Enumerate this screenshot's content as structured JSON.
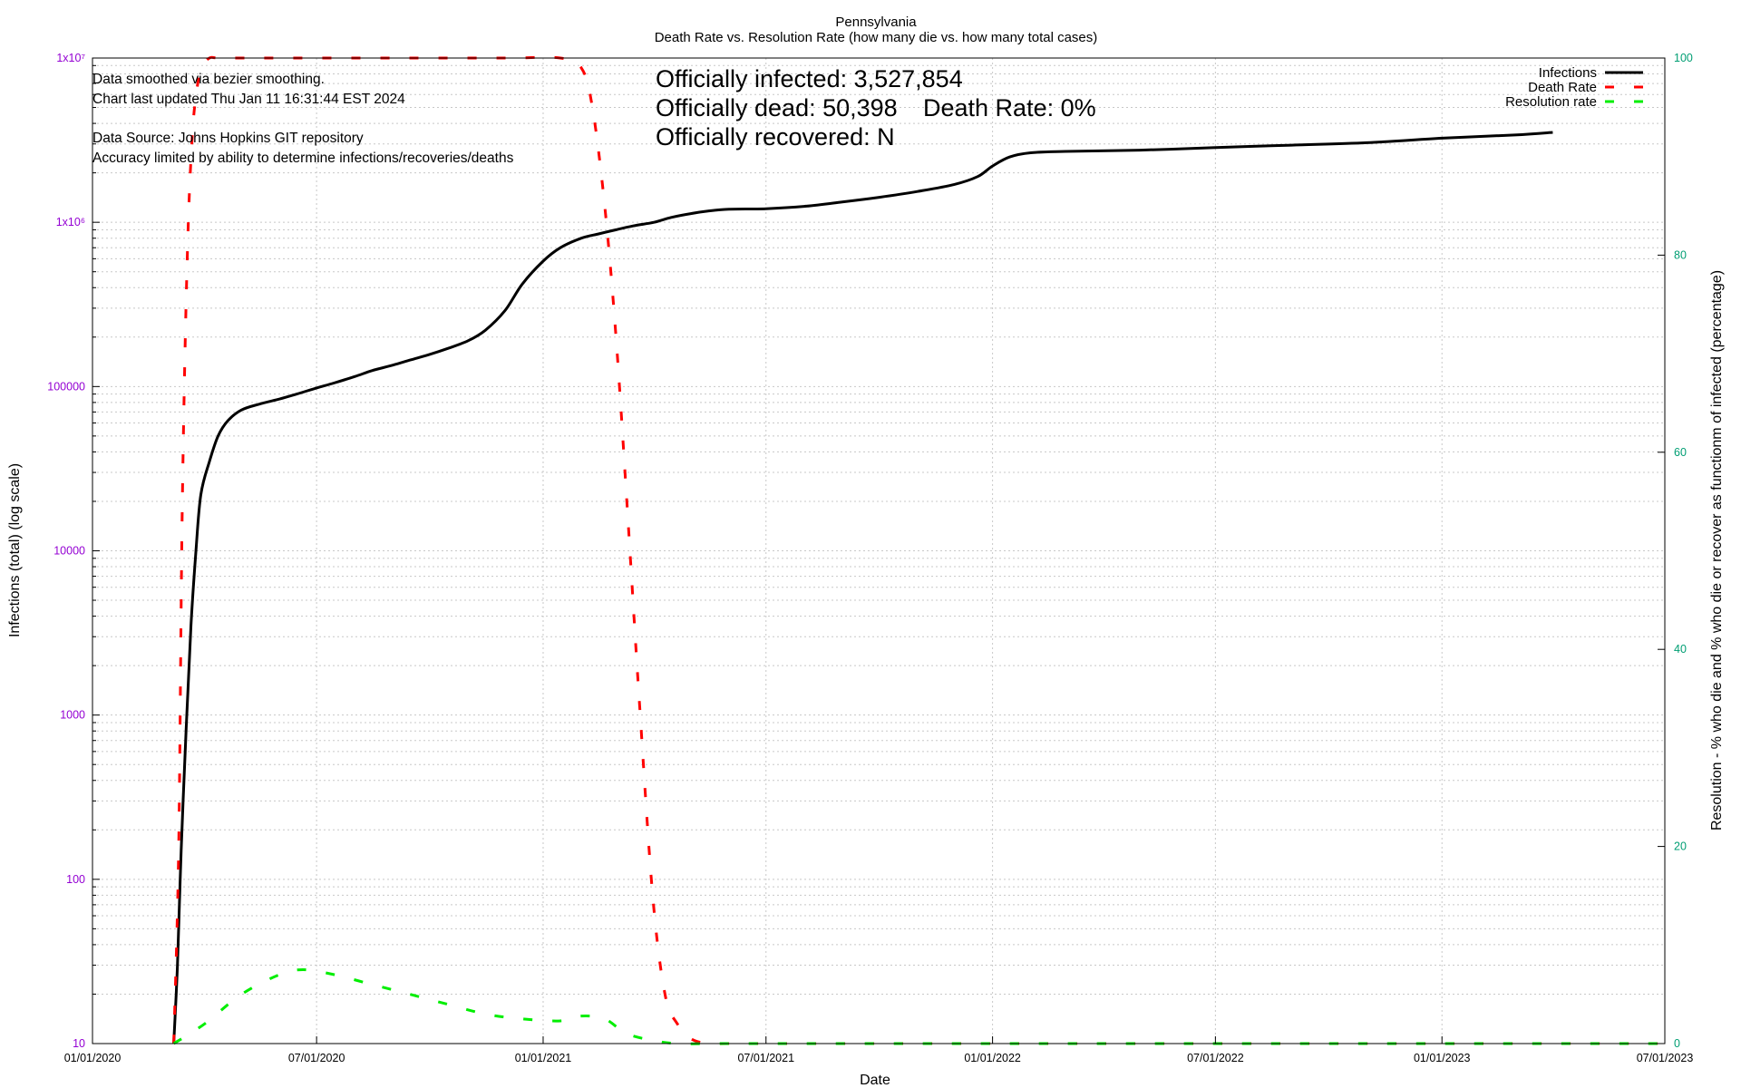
{
  "colors": {
    "infections": "#000000",
    "death_rate": "#ff0000",
    "resolution_rate": "#00ee00",
    "left_axis_ticks": "#9400d3",
    "right_axis_ticks": "#009e73",
    "grid": "#c8c8c8"
  },
  "notes": {
    "smoothing": "Data smoothed via bezier smoothing.",
    "updated": "Chart last updated Thu Jan 11 16:31:44 EST 2024",
    "source": "Data Source: Johns Hopkins GIT repository",
    "accuracy": "Accuracy limited by ability to determine infections/recoveries/deaths"
  },
  "stats": {
    "infected": "Officially infected:  3,527,854",
    "dead": "Officially dead:  50,398",
    "death_rate": "Death Rate: 0%",
    "recovered": "Officially recovered:  N"
  },
  "chart_data": {
    "type": "line",
    "title": "Pennsylvania",
    "subtitle": "Death Rate vs. Resolution Rate (how many die vs. how many total cases)",
    "xlabel": "Date",
    "ylabel": "Infections (total) (log scale)",
    "y2label": "Resolution - % who die and % who die or recover as functionm of infected (percentage)",
    "x_ticks": [
      "01/01/2020",
      "07/01/2020",
      "01/01/2021",
      "07/01/2021",
      "01/01/2022",
      "07/01/2022",
      "01/01/2023",
      "07/01/2023"
    ],
    "xlim": [
      "2020-01-01",
      "2023-07-01"
    ],
    "y_scale": "log",
    "ylim": [
      10,
      10000000
    ],
    "y_ticks": [
      "10",
      "100",
      "1000",
      "10000",
      "100000",
      "1x10⁶",
      "1x10⁷"
    ],
    "y2lim": [
      0,
      100
    ],
    "y2_ticks": [
      "0",
      "20",
      "40",
      "60",
      "80",
      "100"
    ],
    "grid": true,
    "legend_position": "top-right",
    "series": [
      {
        "name": "Infections",
        "axis": "y",
        "style": "solid",
        "x": [
          "2020-03-07",
          "2020-03-10",
          "2020-03-13",
          "2020-03-17",
          "2020-03-21",
          "2020-03-25",
          "2020-03-29",
          "2020-04-05",
          "2020-04-12",
          "2020-04-20",
          "2020-05-01",
          "2020-05-15",
          "2020-06-01",
          "2020-06-15",
          "2020-07-01",
          "2020-07-15",
          "2020-08-01",
          "2020-08-15",
          "2020-09-01",
          "2020-09-15",
          "2020-10-01",
          "2020-10-15",
          "2020-11-01",
          "2020-11-15",
          "2020-12-01",
          "2020-12-15",
          "2021-01-01",
          "2021-01-15",
          "2021-02-01",
          "2021-02-15",
          "2021-03-01",
          "2021-03-15",
          "2021-04-01",
          "2021-04-15",
          "2021-05-01",
          "2021-05-15",
          "2021-06-01",
          "2021-07-01",
          "2021-08-01",
          "2021-09-01",
          "2021-10-01",
          "2021-11-01",
          "2021-12-01",
          "2021-12-20",
          "2022-01-01",
          "2022-01-15",
          "2022-02-01",
          "2022-03-01",
          "2022-05-01",
          "2022-07-01",
          "2022-09-01",
          "2022-11-01",
          "2023-01-01",
          "2023-03-01",
          "2023-04-01"
        ],
        "values": [
          10,
          30,
          150,
          800,
          3500,
          10000,
          22000,
          35000,
          50000,
          62000,
          72000,
          78000,
          84000,
          90000,
          98000,
          105000,
          115000,
          125000,
          135000,
          145000,
          157000,
          170000,
          190000,
          220000,
          290000,
          420000,
          580000,
          700000,
          800000,
          850000,
          900000,
          950000,
          1000000,
          1070000,
          1130000,
          1170000,
          1200000,
          1210000,
          1250000,
          1330000,
          1420000,
          1540000,
          1700000,
          1900000,
          2200000,
          2500000,
          2650000,
          2700000,
          2750000,
          2850000,
          2950000,
          3050000,
          3250000,
          3400000,
          3527854
        ]
      },
      {
        "name": "Death Rate",
        "axis": "y2",
        "style": "dashed",
        "x": [
          "2020-03-07",
          "2020-03-11",
          "2020-03-14",
          "2020-03-18",
          "2020-03-22",
          "2020-03-26",
          "2020-03-30",
          "2020-04-05",
          "2020-04-15",
          "2020-06-01",
          "2020-09-01",
          "2020-12-01",
          "2021-01-15",
          "2021-02-01",
          "2021-02-10",
          "2021-02-20",
          "2021-03-01",
          "2021-03-10",
          "2021-03-20",
          "2021-03-31",
          "2021-04-10",
          "2021-04-20",
          "2021-05-01",
          "2021-05-15",
          "2021-06-01",
          "2021-09-01",
          "2022-01-01",
          "2022-06-01",
          "2023-01-01",
          "2023-07-01"
        ],
        "values": [
          0,
          20,
          55,
          80,
          92,
          97,
          99,
          100,
          100,
          100,
          100,
          100,
          100,
          99,
          95,
          85,
          72,
          55,
          35,
          15,
          5,
          2,
          0.5,
          0,
          0,
          0,
          0,
          0,
          0,
          0
        ]
      },
      {
        "name": "Resolution rate",
        "axis": "y2",
        "style": "dashed",
        "x": [
          "2020-03-07",
          "2020-04-01",
          "2020-05-01",
          "2020-06-01",
          "2020-06-20",
          "2020-07-15",
          "2020-08-15",
          "2020-09-15",
          "2020-10-15",
          "2020-11-15",
          "2020-12-15",
          "2021-01-15",
          "2021-02-01",
          "2021-02-20",
          "2021-03-10",
          "2021-04-01",
          "2021-04-20",
          "2021-05-15",
          "2021-06-01",
          "2021-09-01",
          "2022-01-01",
          "2022-06-01",
          "2023-01-01",
          "2023-07-01"
        ],
        "values": [
          0,
          2,
          5,
          7,
          7.5,
          7,
          6,
          5,
          4,
          3,
          2.5,
          2.3,
          2.8,
          2.5,
          1,
          0.3,
          0,
          0,
          0,
          0,
          0,
          0,
          0,
          0
        ]
      }
    ]
  }
}
